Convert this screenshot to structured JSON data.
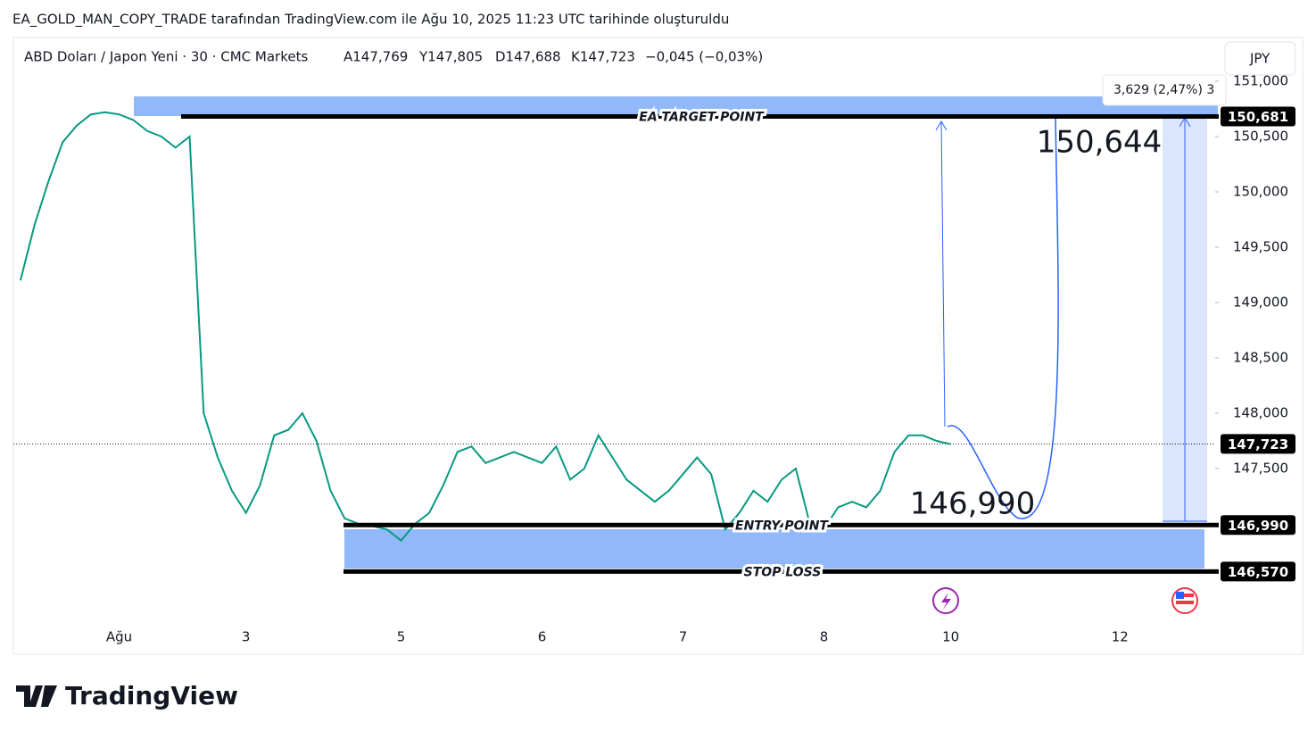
{
  "header": {
    "caption": "EA_GOLD_MAN_COPY_TRADE tarafından TradingView.com ile Ağu 10, 2025 11:23 UTC tarihinde oluşturuldu",
    "symbol": "ABD Doları / Japon Yeni · 30 · CMC Markets",
    "ohlc": [
      "A147,769",
      "Y147,805",
      "D147,688",
      "K147,723"
    ],
    "change": "−0,045 (−0,03%)",
    "currency": "JPY",
    "brand": "TradingView"
  },
  "chart_data": {
    "type": "line",
    "categories": [
      null,
      null,
      null,
      null,
      null,
      null,
      null,
      "Ağu",
      null,
      null,
      null,
      null,
      null,
      null,
      null,
      null,
      "3",
      null,
      null,
      null,
      null,
      null,
      null,
      null,
      null,
      null,
      null,
      "5",
      null,
      null,
      null,
      null,
      null,
      null,
      null,
      null,
      null,
      "6",
      null,
      null,
      null,
      null,
      null,
      null,
      null,
      null,
      null,
      "7",
      null,
      null,
      null,
      null,
      null,
      null,
      null,
      null,
      null,
      "8",
      null,
      null,
      null,
      null,
      null,
      null,
      null,
      null,
      "10",
      null,
      null,
      null,
      null,
      null,
      null,
      null,
      null,
      null,
      null,
      null,
      "12",
      null,
      null,
      null,
      null,
      null,
      null
    ],
    "series": [
      {
        "name": "USDJPY",
        "color": "#089981",
        "values": [
          149.2,
          149.7,
          150.1,
          150.45,
          150.6,
          150.7,
          150.72,
          150.7,
          150.65,
          150.55,
          150.5,
          150.4,
          150.5,
          148.0,
          147.6,
          147.3,
          147.1,
          147.35,
          147.8,
          147.85,
          148.0,
          147.75,
          147.3,
          147.05,
          147.0,
          146.98,
          146.95,
          146.85,
          147.0,
          147.1,
          147.35,
          147.65,
          147.7,
          147.55,
          147.6,
          147.65,
          147.6,
          147.55,
          147.7,
          147.4,
          147.5,
          147.8,
          147.6,
          147.4,
          147.3,
          147.2,
          147.3,
          147.45,
          147.6,
          147.45,
          146.95,
          147.1,
          147.3,
          147.2,
          147.4,
          147.5,
          147.0,
          146.95,
          147.15,
          147.2,
          147.15,
          147.3,
          147.65,
          147.8,
          147.8,
          147.75,
          147.72,
          null,
          null,
          null,
          null,
          null,
          null,
          null,
          null,
          null,
          null,
          null,
          null,
          null,
          null,
          null,
          null,
          null,
          null
        ]
      }
    ],
    "ylim": [
      146.089,
      151.395
    ],
    "yticks": [
      {
        "value": 147.5,
        "label": "147,500"
      },
      {
        "value": 148,
        "label": "148,000"
      },
      {
        "value": 148.5,
        "label": "148,500"
      },
      {
        "value": 149,
        "label": "149,000"
      },
      {
        "value": 149.5,
        "label": "149,500"
      },
      {
        "value": 150,
        "label": "150,000"
      },
      {
        "value": 150.5,
        "label": "150,500"
      },
      {
        "value": 151,
        "label": "151,000"
      }
    ],
    "levels": [
      {
        "value": 150.681,
        "label": "150,681",
        "name": "EA TARGET POINT"
      },
      {
        "value": 146.99,
        "label": "146,990",
        "name": "ENTRY POINT"
      },
      {
        "value": 146.57,
        "label": "146,570",
        "name": "STOP LOSS"
      }
    ],
    "last": {
      "value": 147.723,
      "label": "147,723"
    },
    "annotations": [
      "150,644",
      "146,990"
    ],
    "measure": "3,629 (2,47%) 3"
  }
}
